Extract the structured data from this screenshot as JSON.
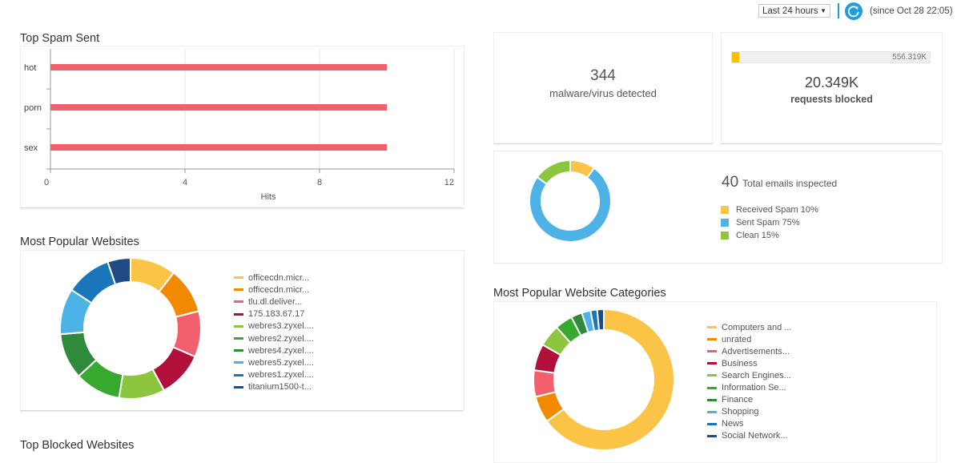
{
  "topbar": {
    "range_select": "Last 24 hours",
    "since_text": "(since Oct 28 22:05)",
    "accent_color": "#1c9ee0"
  },
  "top_spam_sent": {
    "title": "Top Spam Sent",
    "chart_data": {
      "type": "bar",
      "orientation": "horizontal",
      "categories": [
        "hot",
        "porn",
        "sex"
      ],
      "values": [
        10,
        10,
        10
      ],
      "xlabel": "Hits",
      "xlim": [
        0,
        12
      ],
      "xticks": [
        0,
        4,
        8,
        12
      ],
      "grid": true,
      "color": "#f2606e"
    }
  },
  "malware": {
    "count": "344",
    "label": "malware/virus detected"
  },
  "requests_blocked": {
    "bar_total": "556.319K",
    "bar_fill_fraction": 0.037,
    "bar_color": "#f6c000",
    "count": "20.349K",
    "label": "requests blocked"
  },
  "emails": {
    "count": "40",
    "label": "Total emails inspected",
    "chart_data": {
      "type": "pie",
      "donut": true,
      "slices": [
        {
          "label": "Received Spam 10%",
          "value": 10,
          "color": "#fbc447"
        },
        {
          "label": "Sent Spam 75%",
          "value": 75,
          "color": "#4db3e6"
        },
        {
          "label": "Clean 15%",
          "value": 15,
          "color": "#8cc63f"
        }
      ],
      "legend": "right"
    }
  },
  "most_popular_websites": {
    "title": "Most Popular Websites",
    "chart_data": {
      "type": "pie",
      "donut": true,
      "legend": "right",
      "slices": [
        {
          "label": "officecdn.micr...",
          "value": 10,
          "color": "#fbc447"
        },
        {
          "label": "officecdn.micr...",
          "value": 10,
          "color": "#f18a00"
        },
        {
          "label": "tlu.dl.deliver...",
          "value": 10,
          "color": "#f2606e"
        },
        {
          "label": "175.183.67.17",
          "value": 10,
          "color": "#b0103a"
        },
        {
          "label": "webres3.zyxel....",
          "value": 10,
          "color": "#8cc63f"
        },
        {
          "label": "webres2.zyxel....",
          "value": 10,
          "color": "#37a92f"
        },
        {
          "label": "webres4.zyxel....",
          "value": 10,
          "color": "#2f8a3c"
        },
        {
          "label": "webres5.zyxel....",
          "value": 10,
          "color": "#4db3e6"
        },
        {
          "label": "webres1.zyxel....",
          "value": 10,
          "color": "#1a75bb"
        },
        {
          "label": "titanium1500-t...",
          "value": 5,
          "color": "#1f4a86"
        }
      ]
    }
  },
  "most_popular_categories": {
    "title": "Most Popular Website Categories",
    "chart_data": {
      "type": "pie",
      "donut": true,
      "legend": "right",
      "slices": [
        {
          "label": "Computers and ...",
          "value": 64,
          "color": "#fbc447"
        },
        {
          "label": "unrated",
          "value": 6,
          "color": "#f18a00"
        },
        {
          "label": "Advertisements...",
          "value": 6,
          "color": "#f2606e"
        },
        {
          "label": "Business",
          "value": 6,
          "color": "#b0103a"
        },
        {
          "label": "Search Engines...",
          "value": 5,
          "color": "#8cc63f"
        },
        {
          "label": "Information Se...",
          "value": 4,
          "color": "#37a92f"
        },
        {
          "label": "Finance",
          "value": 2.5,
          "color": "#2f8a3c"
        },
        {
          "label": "Shopping",
          "value": 2,
          "color": "#4db3e6"
        },
        {
          "label": "News",
          "value": 1.5,
          "color": "#1a75bb"
        },
        {
          "label": "Social Network...",
          "value": 1.5,
          "color": "#1f4a86"
        }
      ]
    }
  },
  "top_blocked_websites": {
    "title": "Top Blocked Websites"
  }
}
